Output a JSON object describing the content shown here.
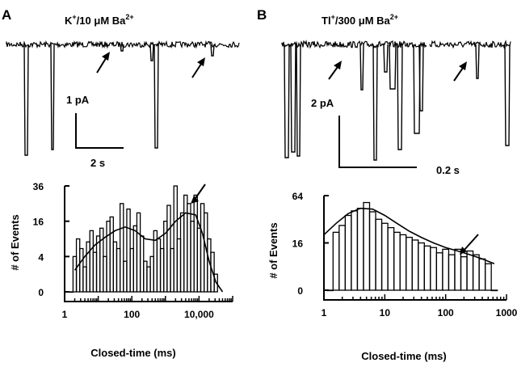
{
  "figure": {
    "panel_a": {
      "letter": "A",
      "condition": {
        "ion": "K",
        "ion_charge": "+",
        "separator": "/10 ",
        "mu": "μ",
        "unit_rest": "M Ba",
        "ba_charge": "2+"
      },
      "scale_current": "1 pA",
      "scale_time": "2 s"
    },
    "panel_b": {
      "letter": "B",
      "condition": {
        "ion": "Tl",
        "ion_charge": "+",
        "separator": "/300 ",
        "mu": "μ",
        "unit_rest": "M Ba",
        "ba_charge": "2+"
      },
      "scale_current": "2 pA",
      "scale_time": "0.2 s"
    }
  },
  "chart_data": [
    {
      "type": "histogram",
      "panel": "A",
      "xlabel": "Closed-time (ms)",
      "ylabel": "# of Events",
      "x_scale": "log",
      "y_scale": "sqrt",
      "xlim": [
        1,
        100000
      ],
      "ylim": [
        0,
        36
      ],
      "x_tick_labels": [
        "1",
        "100",
        "10,000"
      ],
      "y_tick_labels": [
        "0",
        "4",
        "16",
        "36"
      ],
      "bins_log10_ms": [
        0.2,
        0.3,
        0.4,
        0.5,
        0.6,
        0.7,
        0.8,
        0.9,
        1.0,
        1.1,
        1.2,
        1.3,
        1.4,
        1.5,
        1.6,
        1.7,
        1.8,
        1.9,
        2.0,
        2.1,
        2.2,
        2.3,
        2.4,
        2.5,
        2.6,
        2.7,
        2.8,
        2.9,
        3.0,
        3.1,
        3.2,
        3.3,
        3.4,
        3.5,
        3.6,
        3.7,
        3.8,
        3.9,
        4.0,
        4.1,
        4.2,
        4.3,
        4.4,
        4.5
      ],
      "counts": [
        0,
        4,
        9,
        6,
        2,
        8,
        12,
        5,
        10,
        13,
        4,
        16,
        18,
        8,
        6,
        25,
        3,
        22,
        6,
        14,
        20,
        10,
        3,
        2,
        4,
        12,
        9,
        6,
        16,
        24,
        6,
        36,
        9,
        20,
        30,
        25,
        16,
        30,
        13,
        25,
        20,
        9,
        5,
        1
      ],
      "fit_log10_ms": [
        0.3,
        0.6,
        0.9,
        1.2,
        1.5,
        1.8,
        2.1,
        2.4,
        2.7,
        3.0,
        3.3,
        3.6,
        3.9,
        4.1,
        4.3,
        4.5,
        4.7
      ],
      "fit_counts": [
        1.5,
        4,
        7,
        9.5,
        12,
        13.5,
        12,
        9,
        8.5,
        11,
        16,
        20,
        19,
        11,
        3,
        0.3,
        0
      ],
      "annotation": "arrow at fit peak near 10,000 ms"
    },
    {
      "type": "histogram",
      "panel": "B",
      "xlabel": "Closed-time (ms)",
      "ylabel": "# of Events",
      "x_scale": "log",
      "y_scale": "sqrt",
      "xlim": [
        1,
        1000
      ],
      "ylim": [
        0,
        64
      ],
      "x_tick_labels": [
        "1",
        "10",
        "100",
        "1000"
      ],
      "y_tick_labels": [
        "0",
        "16",
        "64"
      ],
      "bins_log10_ms": [
        0.1,
        0.2,
        0.3,
        0.4,
        0.5,
        0.6,
        0.7,
        0.8,
        0.9,
        1.0,
        1.1,
        1.2,
        1.3,
        1.4,
        1.5,
        1.6,
        1.7,
        1.8,
        1.9,
        2.0,
        2.1,
        2.2,
        2.3,
        2.4,
        2.5,
        2.6,
        2.7,
        2.8
      ],
      "counts": [
        0,
        24,
        30,
        40,
        45,
        48,
        55,
        44,
        36,
        32,
        28,
        24,
        22,
        20,
        18,
        16,
        14,
        13,
        10,
        12,
        9,
        12,
        8,
        11,
        9,
        7,
        5,
        0
      ],
      "fit_log10_ms": [
        0,
        0.2,
        0.4,
        0.6,
        0.8,
        1.0,
        1.2,
        1.4,
        1.6,
        1.8,
        2.0,
        2.2,
        2.4,
        2.6,
        2.8
      ],
      "fit_counts": [
        22,
        32,
        42,
        48,
        47,
        40,
        32,
        25,
        20,
        16,
        13,
        11,
        9,
        7,
        5
      ],
      "annotation": "arrow near 300 ms"
    }
  ]
}
